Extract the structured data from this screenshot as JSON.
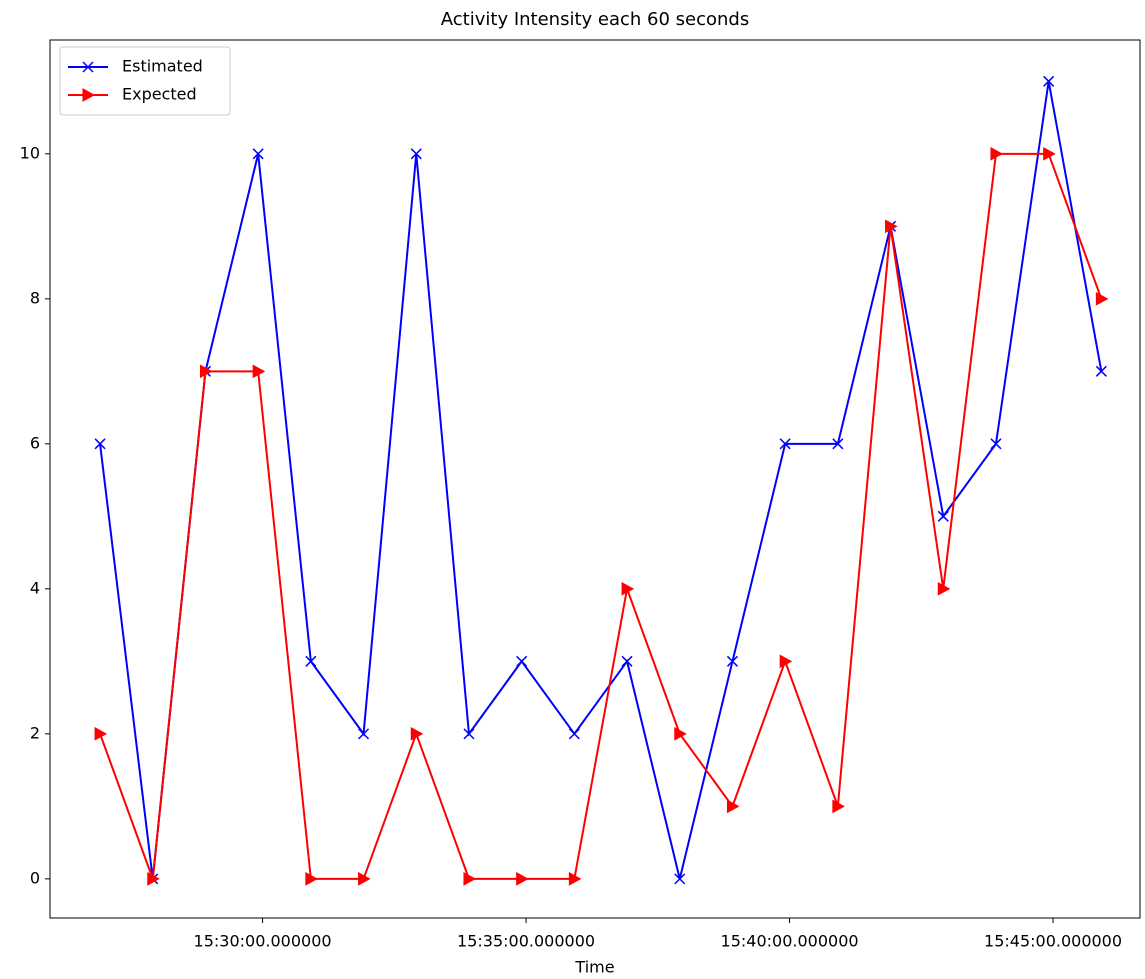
{
  "chart_data": {
    "type": "line",
    "title": "Activity Intensity each 60 seconds",
    "x_label": "Time",
    "x": [
      "15:26:55",
      "15:27:55",
      "15:28:55",
      "15:29:55",
      "15:30:55",
      "15:31:55",
      "15:32:55",
      "15:33:55",
      "15:34:55",
      "15:35:55",
      "15:36:55",
      "15:37:55",
      "15:38:55",
      "15:39:55",
      "15:40:55",
      "15:41:55",
      "15:42:55",
      "15:43:55",
      "15:44:55",
      "15:45:55"
    ],
    "series": [
      {
        "name": "Estimated",
        "color": "#0000ff",
        "marker": "x",
        "values": [
          6,
          0,
          7,
          10,
          3,
          2,
          10,
          2,
          3,
          2,
          3,
          0,
          3,
          6,
          6,
          9,
          5,
          6,
          11,
          7
        ]
      },
      {
        "name": "Expected",
        "color": "#ff0000",
        "marker": ">",
        "values": [
          2,
          0,
          7,
          7,
          0,
          0,
          2,
          0,
          0,
          0,
          4,
          2,
          1,
          3,
          1,
          9,
          4,
          10,
          10,
          8
        ]
      }
    ],
    "xlim": [
      "15:25:58",
      "15:46:39"
    ],
    "xticks": [
      "15:30:00.000000",
      "15:35:00.000000",
      "15:40:00.000000",
      "15:45:00.000000"
    ],
    "ylim": [
      -0.54,
      11.57
    ],
    "yticks": [
      0,
      2,
      4,
      6,
      8,
      10
    ],
    "legend": "upper left"
  }
}
